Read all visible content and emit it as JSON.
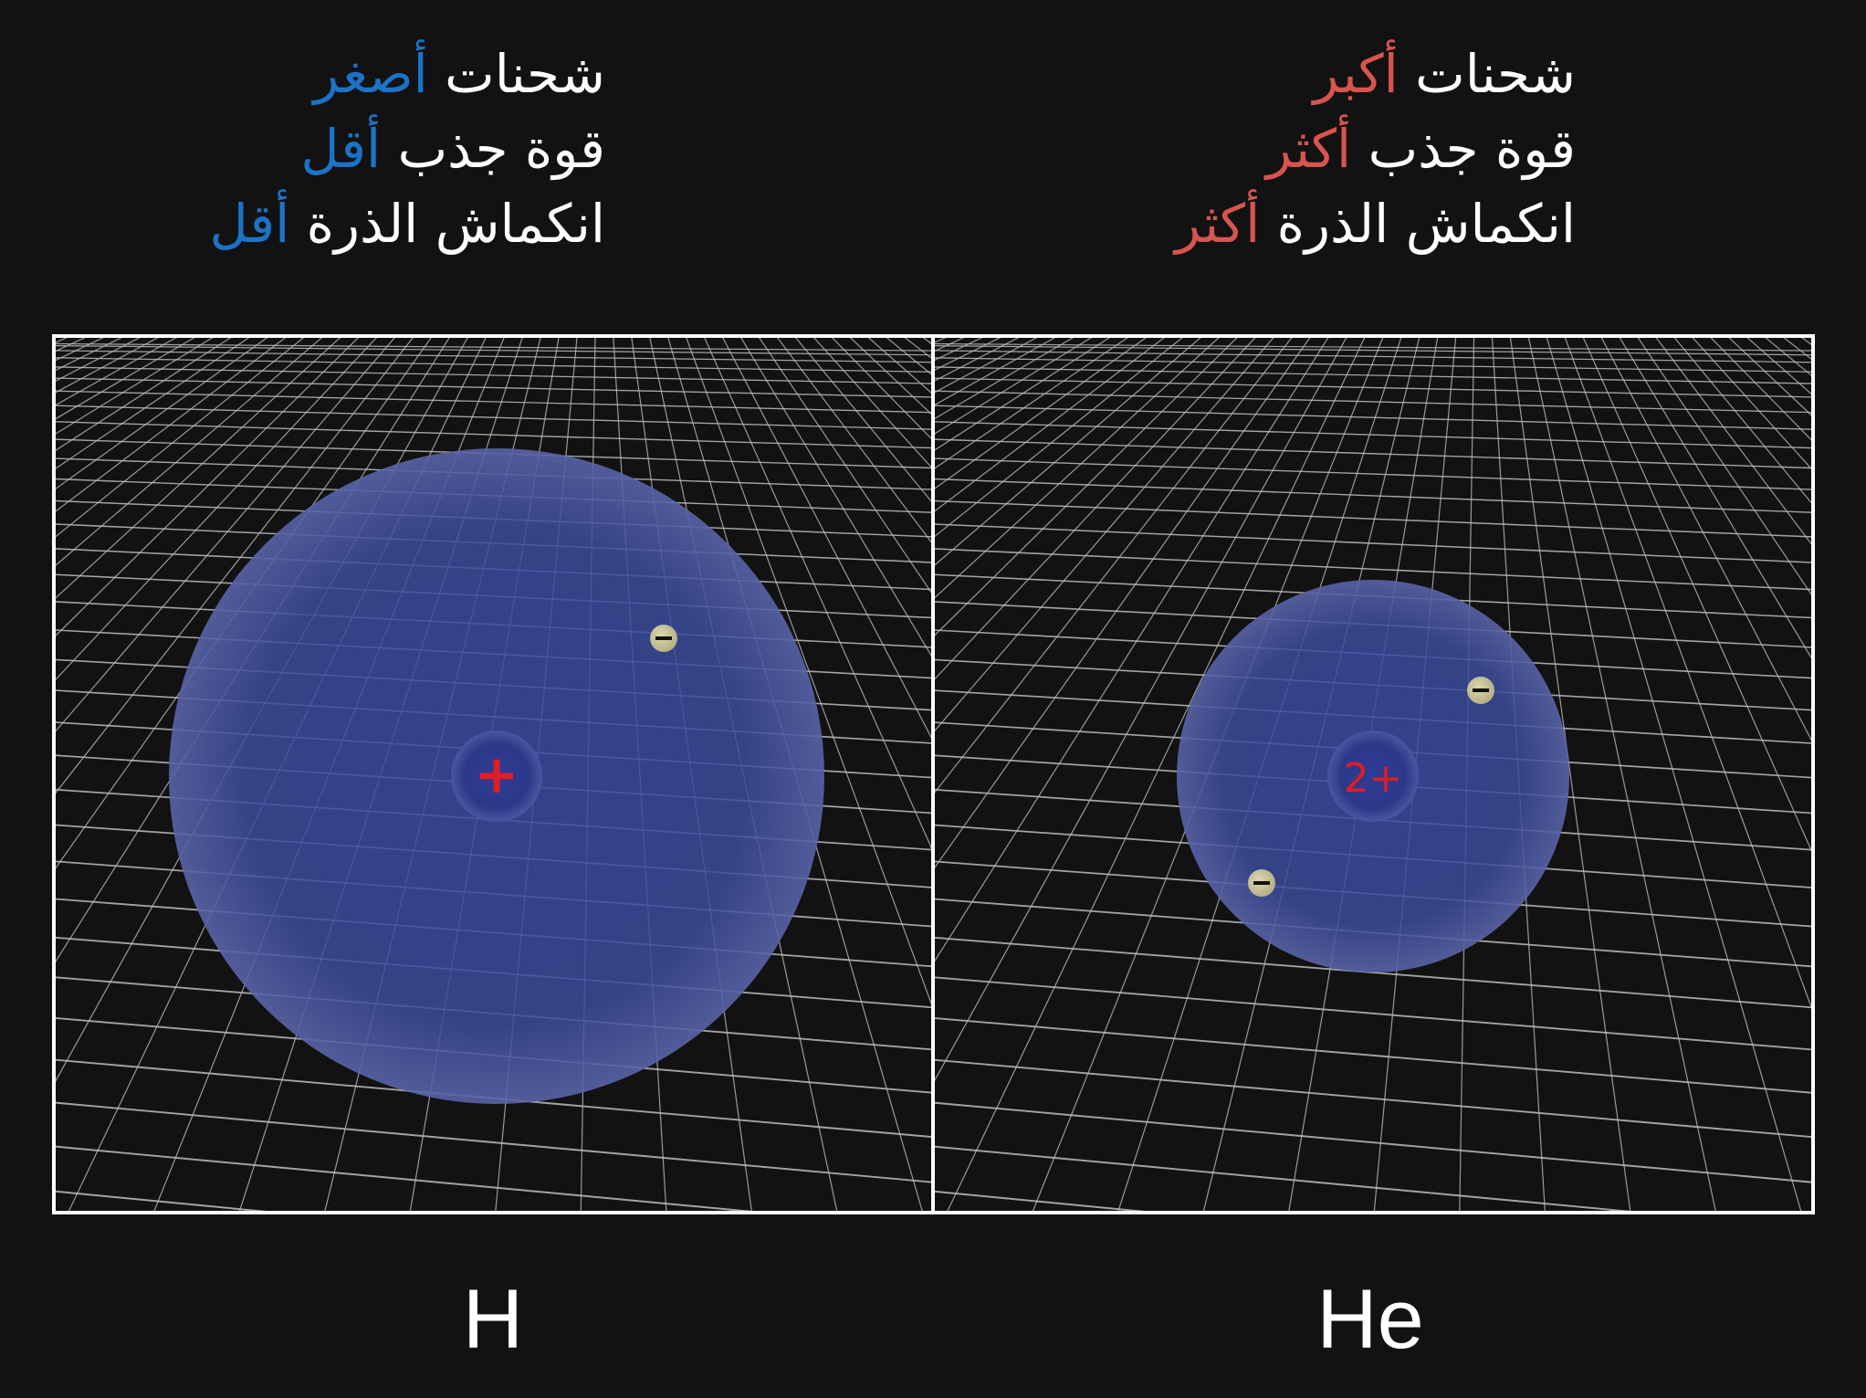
{
  "captions": {
    "hydrogen": [
      {
        "text": "شحنات ",
        "highlight": "أصغر"
      },
      {
        "text": "قوة جذب ",
        "highlight": "أقل"
      },
      {
        "text": "انكماش الذرة ",
        "highlight": "أقل"
      }
    ],
    "helium": [
      {
        "text": "شحنات ",
        "highlight": "أكبر"
      },
      {
        "text": "قوة جذب ",
        "highlight": "أكثر"
      },
      {
        "text": "انكماش الذرة ",
        "highlight": "أكثر"
      }
    ]
  },
  "atoms": {
    "hydrogen": {
      "symbol": "H",
      "nucleus_charge": "+",
      "electron_sign": "−"
    },
    "helium": {
      "symbol": "He",
      "nucleus_charge": "2+",
      "electron_sign": "−"
    }
  },
  "colors": {
    "background": "#121212",
    "less_highlight": "#1b73c8",
    "more_highlight": "#d9544f",
    "electron_cloud": "#3a4a9a",
    "nucleus_charge": "#e01c24",
    "electron": "#c8c49a",
    "grid": "#bdbdbd"
  }
}
